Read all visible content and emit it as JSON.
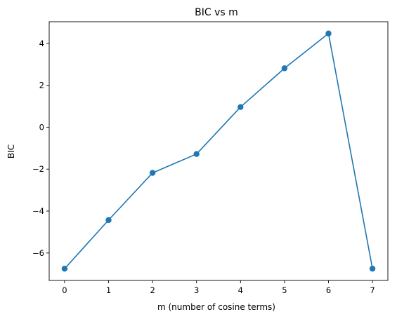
{
  "chart_data": {
    "type": "line",
    "title": "BIC vs m",
    "xlabel": "m (number of cosine terms)",
    "ylabel": "BIC",
    "x": [
      0,
      1,
      2,
      3,
      4,
      5,
      6,
      7
    ],
    "series": [
      {
        "values": [
          -6.75,
          -4.43,
          -2.18,
          -1.28,
          0.96,
          2.81,
          4.47,
          -6.75
        ],
        "color": "#1f77b4",
        "marker": "circle"
      }
    ],
    "xticks": [
      0,
      1,
      2,
      3,
      4,
      5,
      6,
      7
    ],
    "yticks": [
      -6,
      -4,
      -2,
      0,
      2,
      4
    ],
    "xtick_labels": [
      "0",
      "1",
      "2",
      "3",
      "4",
      "5",
      "6",
      "7"
    ],
    "ytick_labels": [
      "−6",
      "−4",
      "−2",
      "0",
      "2",
      "4"
    ],
    "xlim": [
      -0.35,
      7.35
    ],
    "ylim": [
      -7.31,
      5.03
    ],
    "grid": false,
    "legend": false
  }
}
